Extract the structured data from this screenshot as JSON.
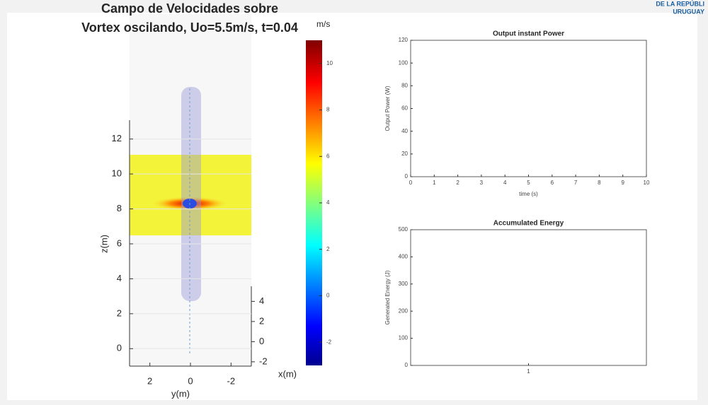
{
  "logo": [
    "DE LA REPÚBLI",
    "URUGUAY"
  ],
  "chart_data": [
    {
      "type": "field",
      "title": [
        "Campo de Velocidades sobre",
        "Vortex oscilando, Uo=5.5m/s, t=0.04"
      ],
      "xlabel": "y(m)",
      "ylabel": "z(m)",
      "depth_label": "x(m)",
      "xlim": [
        3,
        -3
      ],
      "xticks": [
        2,
        0,
        -2
      ],
      "ylim": [
        -1,
        13
      ],
      "yticks": [
        0,
        2,
        4,
        6,
        8,
        10,
        12
      ],
      "depth_lim": [
        -2.5,
        5.5
      ],
      "depth_ticks": [
        -2,
        0,
        2,
        4
      ],
      "colorbar": {
        "label": "m/s",
        "lim": [
          -3,
          11
        ],
        "ticks": [
          -2,
          0,
          2,
          4,
          6,
          8,
          10
        ],
        "colormap": "jet"
      }
    },
    {
      "type": "line",
      "title": "Output instant Power",
      "xlabel": "time (s)",
      "ylabel": "Output Power (W)",
      "xlim": [
        0,
        10
      ],
      "xticks": [
        0,
        1,
        2,
        3,
        4,
        5,
        6,
        7,
        8,
        9,
        10
      ],
      "ylim": [
        0,
        120
      ],
      "yticks": [
        0,
        20,
        40,
        60,
        80,
        100,
        120
      ],
      "series": []
    },
    {
      "type": "line",
      "title": "Accumulated Energy",
      "ylabel": "Generated Energy (J)",
      "xlim": [
        0,
        2
      ],
      "xticks": [
        1
      ],
      "ylim": [
        0,
        500
      ],
      "yticks": [
        0,
        100,
        200,
        300,
        400,
        500
      ],
      "series": []
    }
  ]
}
